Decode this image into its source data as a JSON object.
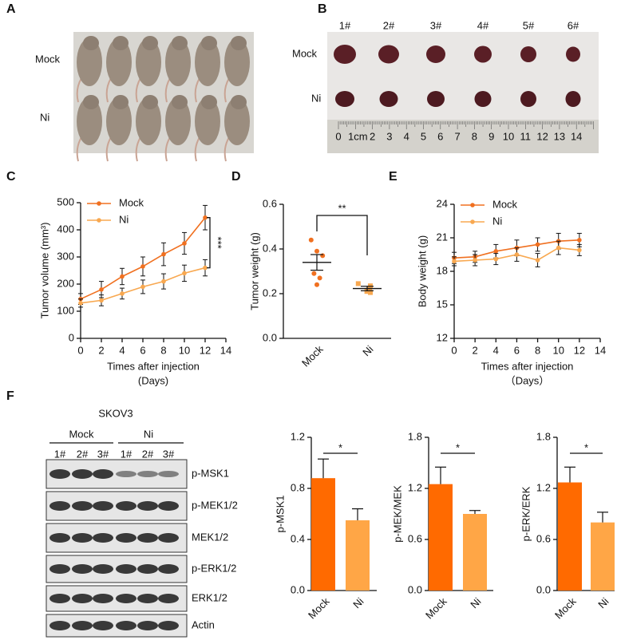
{
  "panel_a": {
    "label": "A",
    "rows": [
      "Mock",
      "Ni"
    ]
  },
  "panel_b": {
    "label": "B",
    "samples": [
      "1#",
      "2#",
      "3#",
      "4#",
      "5#",
      "6#"
    ],
    "rows": [
      "Mock",
      "Ni"
    ],
    "ruler_labels": [
      "0",
      "1cm",
      "2",
      "3",
      "4",
      "5",
      "6",
      "7",
      "8",
      "9",
      "10",
      "11",
      "12",
      "13",
      "14"
    ]
  },
  "panel_f": {
    "label": "F",
    "cell_line": "SKOV3",
    "groups": [
      "Mock",
      "Ni"
    ],
    "lanes": [
      "1#",
      "2#",
      "3#",
      "1#",
      "2#",
      "3#"
    ],
    "proteins": [
      "p-MSK1",
      "p-MEK1/2",
      "MEK1/2",
      "p-ERK1/2",
      "ERK1/2",
      "Actin"
    ]
  },
  "chart_data": [
    {
      "type": "line",
      "panel_label": "C",
      "y_label": "Tumor volume (mm³)",
      "x_label": [
        "Times after injection",
        "(Days)"
      ],
      "x": [
        0,
        2,
        4,
        6,
        8,
        10,
        12
      ],
      "series": [
        {
          "name": "Mock",
          "color": "#f07020",
          "values": [
            145,
            180,
            228,
            265,
            310,
            350,
            445
          ],
          "errors": [
            20,
            30,
            30,
            35,
            42,
            40,
            45
          ]
        },
        {
          "name": "Ni",
          "color": "#f8a850",
          "values": [
            130,
            140,
            165,
            190,
            210,
            240,
            260
          ],
          "errors": [
            15,
            20,
            20,
            25,
            28,
            30,
            30
          ]
        }
      ],
      "xlim": [
        0,
        14
      ],
      "xticks": [
        0,
        2,
        4,
        6,
        8,
        10,
        12,
        14
      ],
      "ylim": [
        0,
        500
      ],
      "yticks": [
        0,
        100,
        200,
        300,
        400,
        500
      ],
      "legend": "upper left",
      "annotation": "***"
    },
    {
      "type": "dot",
      "panel_label": "D",
      "y_label": "Tumor weight (g)",
      "categories": [
        "Mock",
        "Ni"
      ],
      "groups": [
        {
          "color": "#f07020",
          "values": [
            0.44,
            0.39,
            0.37,
            0.29,
            0.27,
            0.24
          ],
          "mean": 0.34,
          "error": 0.035
        },
        {
          "color": "#f8a850",
          "values": [
            0.245,
            0.235,
            0.225,
            0.215,
            0.21,
            0.205
          ],
          "mean": 0.223,
          "error": 0.01
        }
      ],
      "ylim": [
        0,
        0.6
      ],
      "yticks": [
        {
          "value": 0,
          "label": "0.0"
        },
        0.2,
        0.4,
        0.6
      ],
      "annotation": "**"
    },
    {
      "type": "line",
      "panel_label": "E",
      "y_label": "Body weight (g)",
      "x_label": [
        "Times after injection",
        "（Days）"
      ],
      "x": [
        0,
        2,
        4,
        6,
        8,
        10,
        12
      ],
      "series": [
        {
          "name": "Mock",
          "color": "#f07020",
          "values": [
            19.2,
            19.3,
            19.8,
            20.1,
            20.4,
            20.7,
            20.8
          ],
          "errors": [
            0.5,
            0.5,
            0.6,
            0.7,
            0.6,
            0.7,
            0.6
          ]
        },
        {
          "name": "Ni",
          "color": "#f8a850",
          "values": [
            18.9,
            19.0,
            19.1,
            19.5,
            19.0,
            20.1,
            19.9
          ],
          "errors": [
            0.4,
            0.5,
            0.5,
            0.6,
            0.6,
            0.6,
            0.5
          ]
        }
      ],
      "xlim": [
        0,
        14
      ],
      "xticks": [
        0,
        2,
        4,
        6,
        8,
        10,
        12,
        14
      ],
      "ylim": [
        12,
        24
      ],
      "yticks": [
        12,
        15,
        18,
        21,
        24
      ],
      "legend": "upper left"
    },
    {
      "type": "bar",
      "y_label": "p-MSK1",
      "categories": [
        "Mock",
        "Ni"
      ],
      "values": [
        0.88,
        0.55
      ],
      "errors": [
        0.15,
        0.09
      ],
      "colors": [
        "#ff6a00",
        "#ffa646"
      ],
      "ylim": [
        0,
        1.2
      ],
      "yticks": [
        {
          "value": 0,
          "label": "0.0"
        },
        0.4,
        0.8,
        1.2
      ],
      "annotation": "*"
    },
    {
      "type": "bar",
      "y_label": "p-MEK/MEK",
      "categories": [
        "Mock",
        "Ni"
      ],
      "values": [
        1.25,
        0.9
      ],
      "errors": [
        0.2,
        0.04
      ],
      "colors": [
        "#ff6a00",
        "#ffa646"
      ],
      "ylim": [
        0,
        1.8
      ],
      "yticks": [
        {
          "value": 0,
          "label": "0.0"
        },
        0.6,
        1.2,
        1.8
      ],
      "annotation": "*"
    },
    {
      "type": "bar",
      "y_label": "p-ERK/ERK",
      "categories": [
        "Mock",
        "Ni"
      ],
      "values": [
        1.27,
        0.8
      ],
      "errors": [
        0.18,
        0.12
      ],
      "colors": [
        "#ff6a00",
        "#ffa646"
      ],
      "ylim": [
        0,
        1.8
      ],
      "yticks": [
        {
          "value": 0,
          "label": "0.0"
        },
        0.6,
        1.2,
        1.8
      ],
      "annotation": "*"
    }
  ]
}
